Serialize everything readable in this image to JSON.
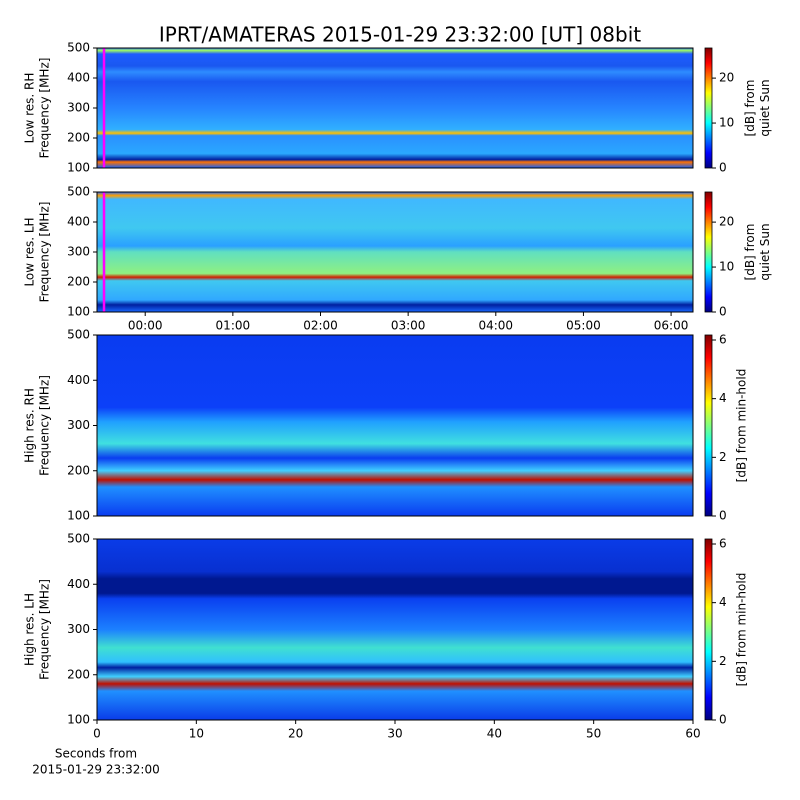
{
  "title": "IPRT/AMATERAS 2015-01-29 23:32:00 [UT]   08bit",
  "chart_data": [
    {
      "type": "heatmap",
      "ylabel": [
        "Low res. RH",
        "Frequency [MHz]"
      ],
      "xlim": [
        -0.55,
        6.25
      ],
      "ylim": [
        100,
        500
      ],
      "yticks": [
        100,
        200,
        300,
        400,
        500
      ],
      "colormap": "jet",
      "clim": [
        0,
        26.7
      ],
      "cticks": [
        0,
        10,
        20
      ],
      "colorbar_label": [
        "[dB] from",
        "quiet Sun"
      ],
      "cursor": {
        "x": -0.47,
        "color": "#ff00ff"
      }
    },
    {
      "type": "heatmap",
      "ylabel": [
        "Low res. LH",
        "Frequency [MHz]"
      ],
      "xlim": [
        -0.55,
        6.25
      ],
      "xticks": [
        {
          "value": 0,
          "label": "00:00"
        },
        {
          "value": 1,
          "label": "01:00"
        },
        {
          "value": 2,
          "label": "02:00"
        },
        {
          "value": 3,
          "label": "03:00"
        },
        {
          "value": 4,
          "label": "04:00"
        },
        {
          "value": 5,
          "label": "05:00"
        },
        {
          "value": 6,
          "label": "06:00"
        }
      ],
      "ylim": [
        100,
        500
      ],
      "yticks": [
        100,
        200,
        300,
        400,
        500
      ],
      "colormap": "jet",
      "clim": [
        0,
        26.7
      ],
      "cticks": [
        0,
        10,
        20
      ],
      "colorbar_label": [
        "[dB] from",
        "quiet Sun"
      ],
      "cursor": {
        "x": -0.47,
        "color": "#ff00ff"
      }
    },
    {
      "type": "heatmap",
      "ylabel": [
        "High res. RH",
        "Frequency [MHz]"
      ],
      "xlim": [
        0,
        60
      ],
      "ylim": [
        100,
        500
      ],
      "yticks": [
        100,
        200,
        300,
        400,
        500
      ],
      "colormap": "jet",
      "clim": [
        0,
        6.17
      ],
      "cticks": [
        0,
        2,
        4,
        6
      ],
      "colorbar_label": [
        "[dB] from min-hold"
      ]
    },
    {
      "type": "heatmap",
      "ylabel": [
        "High res. LH",
        "Frequency [MHz]"
      ],
      "xlim": [
        0,
        60
      ],
      "xticks": [
        0,
        10,
        20,
        30,
        40,
        50,
        60
      ],
      "xlabel": [
        "Seconds from",
        "2015-01-29 23:32:00"
      ],
      "ylim": [
        100,
        500
      ],
      "yticks": [
        100,
        200,
        300,
        400,
        500
      ],
      "colormap": "jet",
      "clim": [
        0,
        6.17
      ],
      "cticks": [
        0,
        2,
        4,
        6
      ],
      "colorbar_label": [
        "[dB] from min-hold"
      ]
    }
  ]
}
